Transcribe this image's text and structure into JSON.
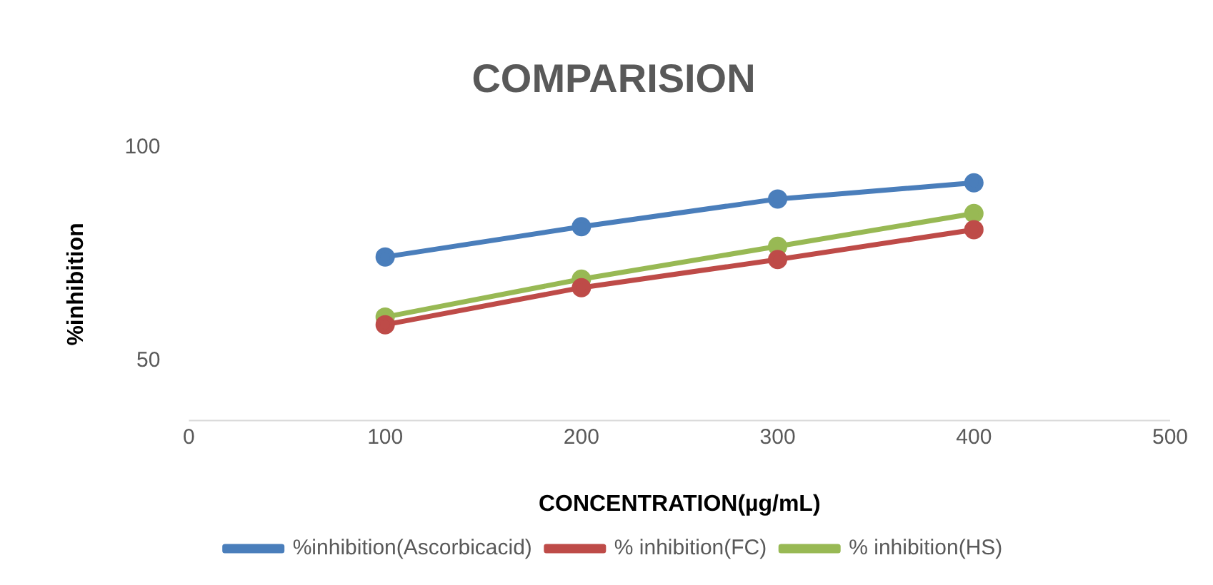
{
  "chart_data": {
    "type": "line",
    "title": "COMPARISION",
    "xlabel": "CONCENTRATION(µg/mL)",
    "ylabel": "%inhibition",
    "x": [
      100,
      200,
      300,
      400
    ],
    "series": [
      {
        "name": "%inhibition(Ascorbicacid)",
        "color": "#4a7ebb",
        "values": [
          74.4,
          81.5,
          88,
          91.8
        ]
      },
      {
        "name": "% inhibition(FC)",
        "color": "#be4b48",
        "values": [
          58.5,
          67.2,
          73.8,
          80.8
        ]
      },
      {
        "name": "% inhibition(HS)",
        "color": "#98b954",
        "values": [
          60.3,
          69.2,
          76.9,
          84.6
        ]
      }
    ],
    "xlim": [
      0,
      500
    ],
    "xticks": [
      0,
      100,
      200,
      300,
      400,
      500
    ],
    "ylim": [
      36,
      100
    ],
    "yticks": [
      50,
      100
    ],
    "grid": false,
    "legend": "bottom",
    "marker": "circle",
    "line_style": "solid"
  }
}
